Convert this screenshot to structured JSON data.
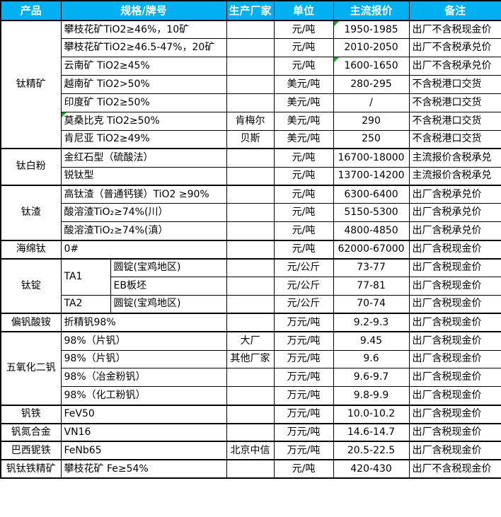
{
  "colors": {
    "header_background": "#00B0F0",
    "header_text": "#FFFFFF",
    "border": "#000000",
    "error_indicator_green": "#1FA01F"
  },
  "table": {
    "columns": [
      "产品",
      "规格/牌号",
      "生产厂家",
      "单位",
      "主流报价",
      "备注"
    ],
    "groups": [
      {
        "product": "钛精矿",
        "rows": [
          {
            "spec": "攀枝花矿TiO2≥46%，10矿",
            "manufacturer": "",
            "unit": "元/吨",
            "price": "1950-1985",
            "note": "出厂不含税现金价",
            "marker": "price"
          },
          {
            "spec": "攀枝花矿TiO2≥46.5-47%，20矿",
            "manufacturer": "",
            "unit": "元/吨",
            "price": "2010-2050",
            "note": "出厂不含税承兑价"
          },
          {
            "spec": "云南矿 TiO2≥45%",
            "manufacturer": "",
            "unit": "元/吨",
            "price": "1600-1650",
            "note": "出厂不含税承兑价",
            "marker": "price"
          },
          {
            "spec": "越南矿 TiO2>50%",
            "manufacturer": "",
            "unit": "美元/吨",
            "price": "280-295",
            "note": "不含税港口交货"
          },
          {
            "spec": "印度矿 TiO2≥50%",
            "manufacturer": "",
            "unit": "美元/吨",
            "price": "/",
            "note": "不含税港口交货"
          },
          {
            "spec": "莫桑比克 TiO2≥50%",
            "manufacturer": "肯梅尔",
            "unit": "美元/吨",
            "price": "290",
            "note": "不含税港口交货",
            "marker": "spec"
          },
          {
            "spec": "肯尼亚 TiO2≥49%",
            "manufacturer": "贝斯",
            "unit": "美元/吨",
            "price": "250",
            "note": "不含税港口交货"
          }
        ]
      },
      {
        "product": "钛白粉",
        "rows": [
          {
            "spec": "金红石型（硫酸法）",
            "manufacturer": "",
            "unit": "元/吨",
            "price": "16700-18000",
            "note": "主流报价含税承兑"
          },
          {
            "spec": "锐钛型",
            "manufacturer": "",
            "unit": "元/吨",
            "price": "13700-14200",
            "note": "主流报价含税承兑"
          }
        ]
      },
      {
        "product": "钛渣",
        "rows": [
          {
            "spec": "高钛渣（普通钙镁）TiO2 ≥90%",
            "manufacturer": "",
            "unit": "元/吨",
            "price": "6300-6400",
            "note": "出厂含税承兑价"
          },
          {
            "spec": "酸溶渣TiO₂≥74%(川）",
            "manufacturer": "",
            "unit": "元/吨",
            "price": "5150-5300",
            "note": "出厂含税承兑价"
          },
          {
            "spec": "酸溶渣TiO₂≥74%(滇）",
            "manufacturer": "",
            "unit": "元/吨",
            "price": "4800-4850",
            "note": "出厂含税承兑价"
          }
        ]
      },
      {
        "product": "海绵钛",
        "rows": [
          {
            "spec": "0#",
            "manufacturer": "",
            "unit": "元/吨",
            "price": "62000-67000",
            "note": "出厂含税现金价"
          }
        ]
      },
      {
        "product": "钛锭",
        "split_spec": true,
        "rows": [
          {
            "grade": "TA1",
            "grade_rowspan": 2,
            "spec": "圆锭(宝鸡地区)",
            "manufacturer": "",
            "unit": "元/公斤",
            "price": "73-77",
            "note": "出厂含税现金价"
          },
          {
            "grade": null,
            "spec": "EB板坯",
            "manufacturer": "",
            "unit": "元/公斤",
            "price": "77-81",
            "note": "出厂含税现金价"
          },
          {
            "grade": "TA2",
            "grade_rowspan": 1,
            "spec": "圆锭(宝鸡地区)",
            "manufacturer": "",
            "unit": "元/公斤",
            "price": "70-74",
            "note": "出厂含税现金价"
          }
        ]
      },
      {
        "product": "偏钒酸铵",
        "rows": [
          {
            "spec": "折精钒98%",
            "manufacturer": "",
            "unit": "万元/吨",
            "price": "9.2-9.3",
            "note": "出厂含税现金价"
          }
        ]
      },
      {
        "product": "五氧化二钒",
        "rows": [
          {
            "spec": "98%（片钒）",
            "manufacturer": "大厂",
            "unit": "万元/吨",
            "price": "9.45",
            "note": "出厂含税现金价"
          },
          {
            "spec": "98%（片钒）",
            "manufacturer": "其他厂家",
            "unit": "万元/吨",
            "price": "9.6",
            "note": "出厂含税现金价"
          },
          {
            "spec": "98%（冶金粉钒）",
            "manufacturer": "",
            "unit": "万元/吨",
            "price": "9.6-9.7",
            "note": "出厂含税现金价"
          },
          {
            "spec": "98%（化工粉钒）",
            "manufacturer": "",
            "unit": "万元/吨",
            "price": "9.8-9.9",
            "note": "出厂含税现金价"
          }
        ]
      },
      {
        "product": "钒铁",
        "rows": [
          {
            "spec": "FeV50",
            "manufacturer": "",
            "unit": "万元/吨",
            "price": "10.0-10.2",
            "note": "出厂含税现金价"
          }
        ]
      },
      {
        "product": "钒氮合金",
        "rows": [
          {
            "spec": "VN16",
            "manufacturer": "",
            "unit": "万元/吨",
            "price": "14.6-14.7",
            "note": "出厂含税现金价"
          }
        ]
      },
      {
        "product": "巴西铌铁",
        "rows": [
          {
            "spec": "FeNb65",
            "manufacturer": "北京中信",
            "unit": "万元/吨",
            "price": "20.5-22.5",
            "note": "出厂含税现金价"
          }
        ]
      },
      {
        "product": "钒钛铁精矿",
        "rows": [
          {
            "spec": "攀枝花矿 Fe≥54%",
            "manufacturer": "",
            "unit": "元/吨",
            "price": "420-430",
            "note": "出厂不含税现金价"
          }
        ]
      }
    ]
  }
}
